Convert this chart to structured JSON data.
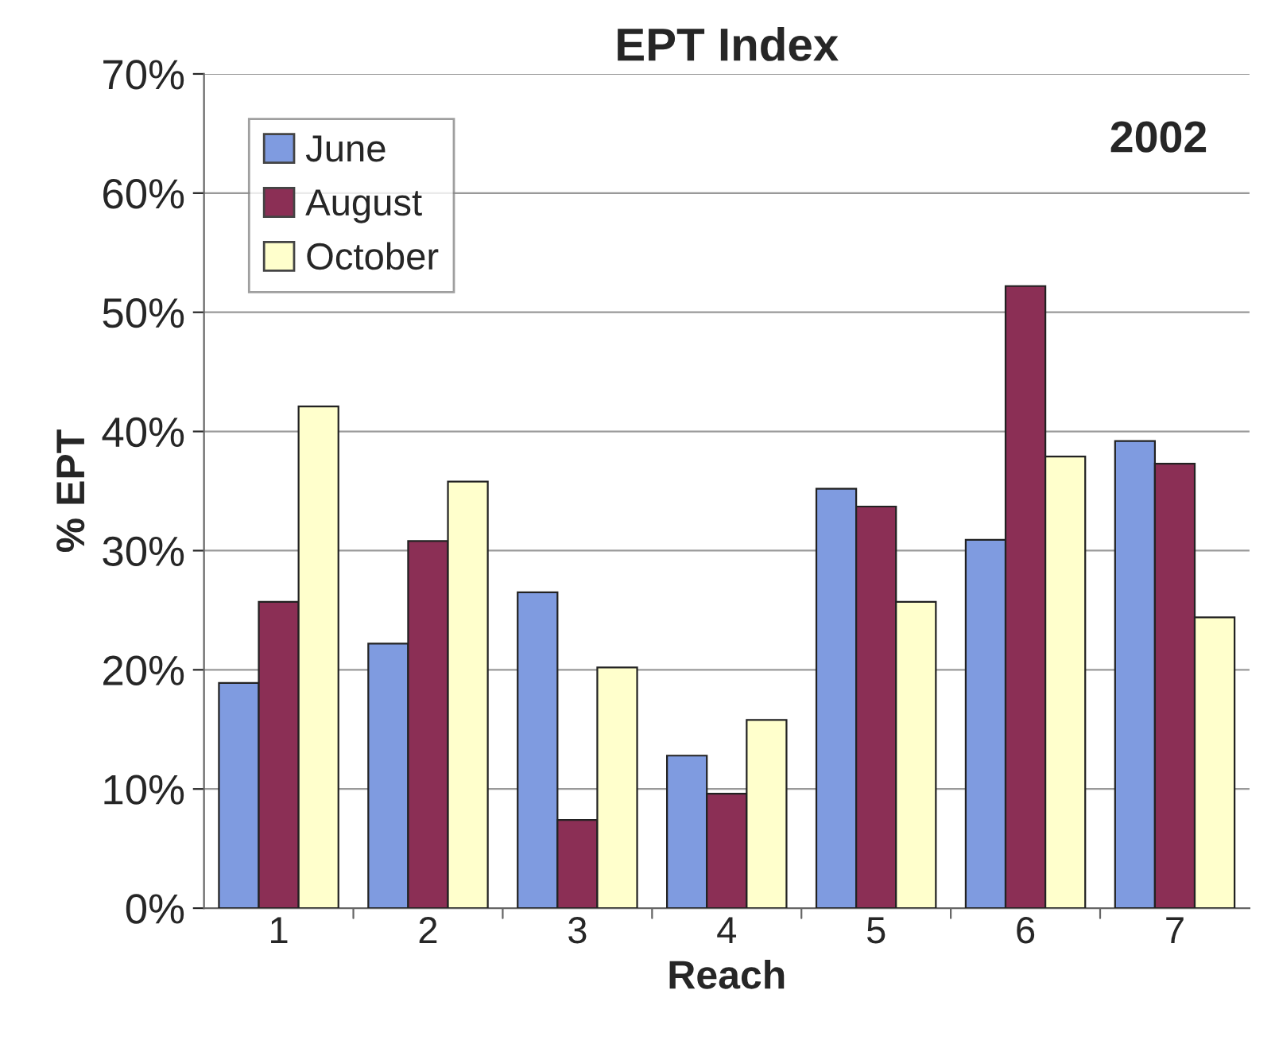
{
  "chart_data": {
    "type": "bar",
    "title": "EPT Index",
    "xlabel": "Reach",
    "ylabel": "% EPT",
    "categories": [
      "1",
      "2",
      "3",
      "4",
      "5",
      "6",
      "7"
    ],
    "series": [
      {
        "name": "June",
        "color": "#7f9be0",
        "values": [
          18.9,
          22.2,
          26.5,
          12.8,
          35.2,
          30.9,
          39.2
        ]
      },
      {
        "name": "August",
        "color": "#8b2f55",
        "values": [
          25.7,
          30.8,
          7.4,
          9.6,
          33.7,
          52.2,
          37.3
        ]
      },
      {
        "name": "October",
        "color": "#ffffcc",
        "values": [
          42.1,
          35.8,
          20.2,
          15.8,
          25.7,
          37.9,
          24.4
        ]
      }
    ],
    "ylim": [
      0,
      70
    ],
    "yticks": [
      {
        "value": 0,
        "label": "0%"
      },
      {
        "value": 10,
        "label": "10%"
      },
      {
        "value": 20,
        "label": "20%"
      },
      {
        "value": 30,
        "label": "30%"
      },
      {
        "value": 40,
        "label": "40%"
      },
      {
        "value": 50,
        "label": "50%"
      },
      {
        "value": 60,
        "label": "60%"
      },
      {
        "value": 70,
        "label": "70%"
      }
    ],
    "grid": "y",
    "legend": "top left",
    "annotations": [
      "2002"
    ]
  }
}
